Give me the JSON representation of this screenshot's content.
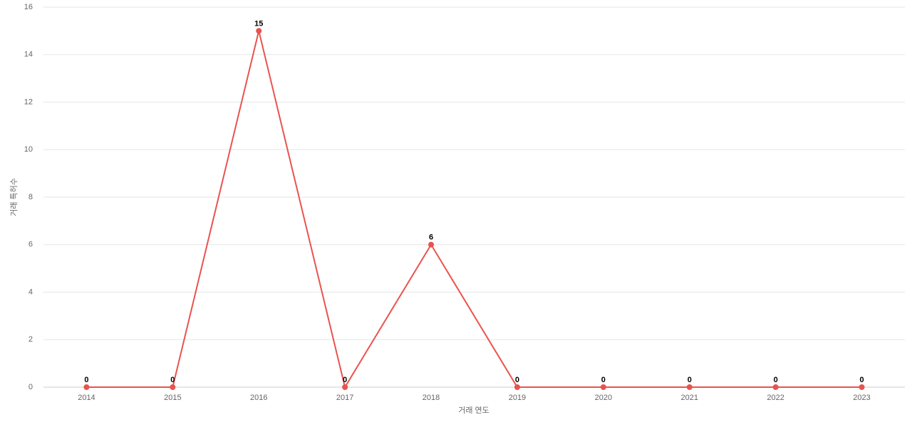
{
  "chart_data": {
    "type": "line",
    "x_label": "거래 연도",
    "y_label": "거래 특허수",
    "categories": [
      "2014",
      "2015",
      "2016",
      "2017",
      "2018",
      "2019",
      "2020",
      "2021",
      "2022",
      "2023"
    ],
    "values": [
      0,
      0,
      15,
      0,
      6,
      0,
      0,
      0,
      0,
      0
    ],
    "color": "#e8534f",
    "ylim": [
      0,
      16
    ],
    "yticks": [
      0,
      2,
      4,
      6,
      8,
      10,
      12,
      14,
      16
    ],
    "grid": true
  }
}
